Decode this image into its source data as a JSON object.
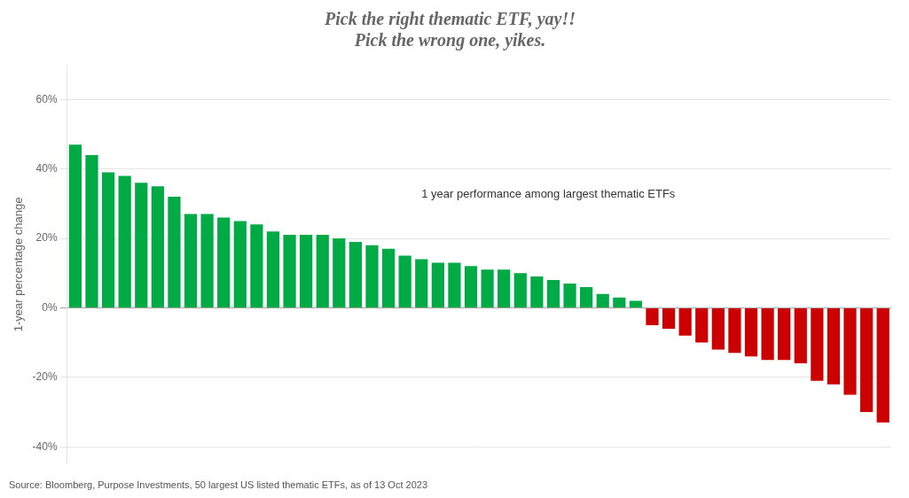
{
  "chart_data": {
    "type": "bar",
    "title": [
      "Pick the right thematic ETF, yay!!",
      "Pick the wrong one, yikes."
    ],
    "annotations": [
      "1 year performance among largest thematic ETFs"
    ],
    "source": "Source: Bloomberg, Purpose Investments, 50 largest US listed thematic ETFs, as of 13 Oct 2023",
    "ylabel": "1-year percentage change",
    "categories": [
      null,
      null,
      null,
      null,
      null,
      null,
      null,
      null,
      null,
      null,
      null,
      null,
      null,
      null,
      null,
      null,
      null,
      null,
      null,
      null,
      null,
      null,
      null,
      null,
      null,
      null,
      null,
      null,
      null,
      null,
      null,
      null,
      null,
      null,
      null,
      null,
      null,
      null,
      null,
      null,
      null,
      null,
      null,
      null,
      null,
      null,
      null,
      null,
      null,
      null
    ],
    "values": [
      47,
      44,
      39,
      38,
      36,
      35,
      32,
      27,
      27,
      26,
      25,
      24,
      22,
      21,
      21,
      21,
      20,
      19,
      18,
      17,
      15,
      14,
      13,
      13,
      12,
      11,
      11,
      10,
      9,
      8,
      7,
      6,
      4,
      3,
      2,
      -5,
      -6,
      -8,
      -10,
      -12,
      -13,
      -14,
      -15,
      -15,
      -16,
      -21,
      -22,
      -25,
      -30,
      -33
    ],
    "colors": [
      "#00aa44",
      "#00aa44",
      "#00aa44",
      "#00aa44",
      "#00aa44",
      "#00aa44",
      "#00aa44",
      "#00aa44",
      "#00aa44",
      "#00aa44",
      "#00aa44",
      "#00aa44",
      "#00aa44",
      "#00aa44",
      "#00aa44",
      "#00aa44",
      "#00aa44",
      "#00aa44",
      "#00aa44",
      "#00aa44",
      "#00aa44",
      "#00aa44",
      "#00aa44",
      "#00aa44",
      "#00aa44",
      "#00aa44",
      "#00aa44",
      "#00aa44",
      "#00aa44",
      "#00aa44",
      "#00aa44",
      "#00aa44",
      "#00aa44",
      "#00aa44",
      "#00aa44",
      "#cc0000",
      "#cc0000",
      "#cc0000",
      "#cc0000",
      "#cc0000",
      "#cc0000",
      "#cc0000",
      "#cc0000",
      "#cc0000",
      "#cc0000",
      "#cc0000",
      "#cc0000",
      "#cc0000",
      "#cc0000",
      "#cc0000"
    ],
    "ylim": [
      -45,
      70
    ],
    "yticks": [
      {
        "value": -40,
        "label": "-40%"
      },
      {
        "value": -20,
        "label": "-20%"
      },
      {
        "value": 0,
        "label": "0%"
      },
      {
        "value": 20,
        "label": "20%"
      },
      {
        "value": 40,
        "label": "40%"
      },
      {
        "value": 60,
        "label": "60%"
      }
    ],
    "grid": true,
    "tick_labels": "y"
  }
}
